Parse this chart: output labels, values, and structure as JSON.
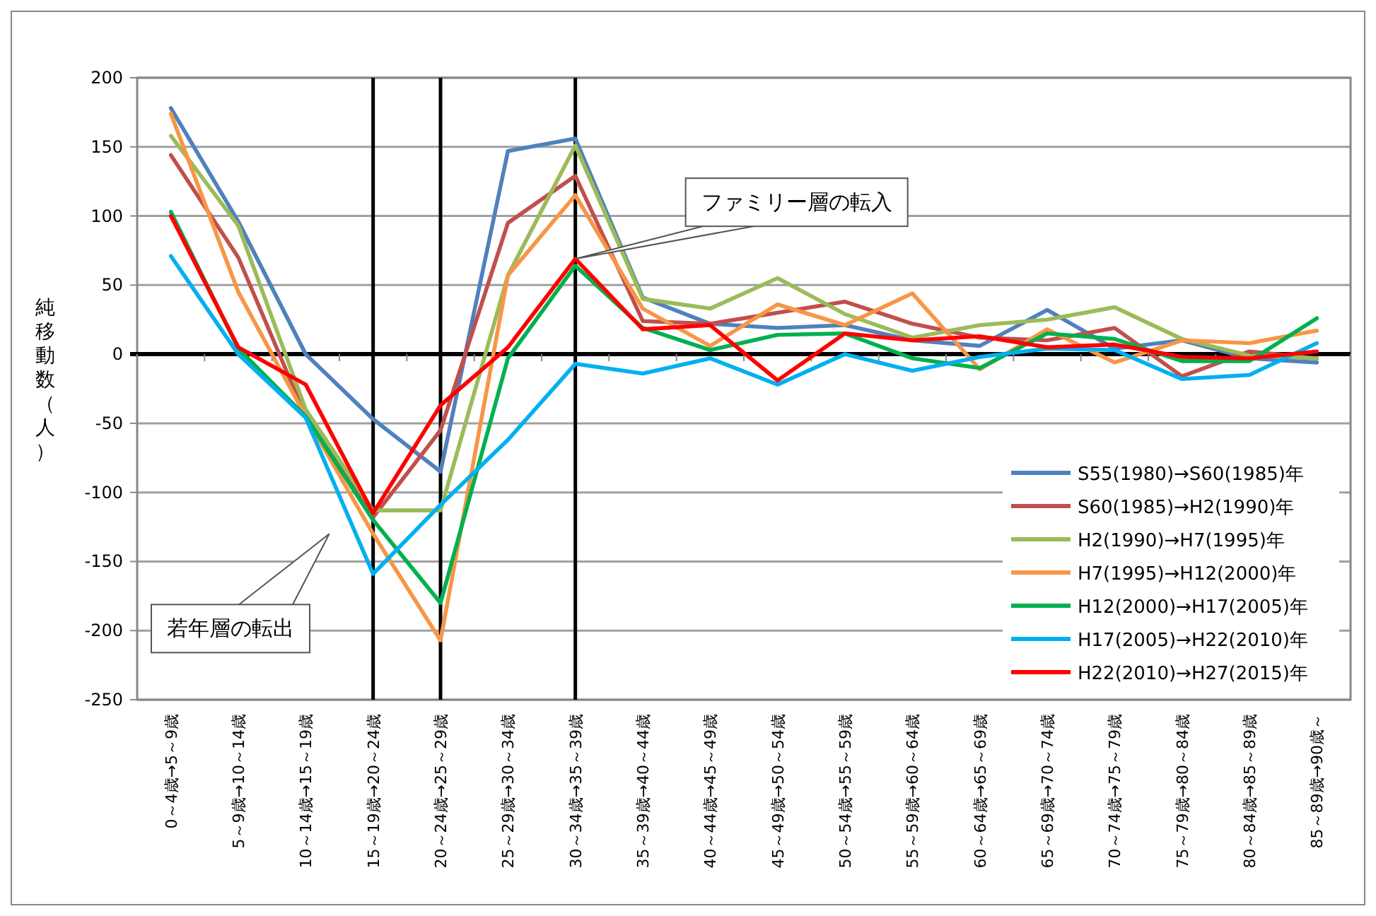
{
  "chart_data": {
    "type": "line",
    "ylabel": "純移動数（人）",
    "categories": [
      "0～4歳→5～9歳",
      "5～9歳→10～14歳",
      "10～14歳→15～19歳",
      "15～19歳→20～24歳",
      "20～24歳→25～29歳",
      "25～29歳→30～34歳",
      "30～34歳→35～39歳",
      "35～39歳→40～44歳",
      "40～44歳→45～49歳",
      "45～49歳→50～54歳",
      "50～54歳→55～59歳",
      "55～59歳→60～64歳",
      "60～64歳→65～69歳",
      "65～69歳→70～74歳",
      "70～74歳→75～79歳",
      "75～79歳→80～84歳",
      "80～84歳→85～89歳",
      "85～89歳→90歳～"
    ],
    "series": [
      {
        "name": "S55(1980)→S60(1985)年",
        "color": "#4f81bd",
        "values": [
          178,
          96,
          0,
          -47,
          -85,
          147,
          156,
          41,
          22,
          19,
          21,
          10,
          6,
          32,
          4,
          10,
          -3,
          -6
        ]
      },
      {
        "name": "S60(1985)→H2(1990)年",
        "color": "#c0504d",
        "values": [
          144,
          70,
          -45,
          -118,
          -55,
          95,
          129,
          24,
          22,
          30,
          38,
          22,
          12,
          10,
          19,
          -16,
          2,
          -3
        ]
      },
      {
        "name": "H2(1990)→H7(1995)年",
        "color": "#9bbb59",
        "values": [
          158,
          93,
          -40,
          -113,
          -113,
          57,
          151,
          40,
          33,
          55,
          29,
          12,
          21,
          25,
          34,
          11,
          -1,
          -3
        ]
      },
      {
        "name": "H7(1995)→H12(2000)年",
        "color": "#f79646",
        "values": [
          174,
          45,
          -45,
          -130,
          -207,
          57,
          115,
          33,
          6,
          36,
          21,
          44,
          -11,
          18,
          -6,
          10,
          8,
          17
        ]
      },
      {
        "name": "H12(2000)→H17(2005)年",
        "color": "#00b050",
        "values": [
          103,
          4,
          -45,
          -120,
          -180,
          -3,
          64,
          19,
          3,
          14,
          15,
          -3,
          -10,
          15,
          11,
          -5,
          -5,
          26
        ]
      },
      {
        "name": "H17(2005)→H22(2010)年",
        "color": "#00b0f0",
        "values": [
          71,
          0,
          -46,
          -159,
          -109,
          -62,
          -7,
          -14,
          -3,
          -22,
          0,
          -12,
          -2,
          4,
          3,
          -18,
          -15,
          8
        ]
      },
      {
        "name": "H22(2010)→H27(2015)年",
        "color": "#ff0000",
        "values": [
          100,
          5,
          -22,
          -115,
          -37,
          5,
          69,
          18,
          21,
          -19,
          15,
          10,
          13,
          5,
          7,
          -2,
          -3,
          2
        ]
      }
    ],
    "ylim": [
      -250,
      200
    ],
    "yticks": [
      -250,
      -200,
      -150,
      -100,
      -50,
      0,
      50,
      100,
      150,
      200
    ],
    "grid": "y",
    "legend": "bottom right",
    "marker": "none",
    "line_style": "solid",
    "ref_lines": [
      {
        "axis": "x",
        "value": "15～19歳→20～24歳",
        "color": "#000000"
      },
      {
        "axis": "x",
        "value": "20～24歳→25～29歳",
        "color": "#000000"
      },
      {
        "axis": "x",
        "value": "30～34歳→35～39歳",
        "color": "#000000"
      }
    ],
    "annotations": [
      {
        "text": "ファミリー層の転入",
        "x": "30～34歳→35～39歳",
        "y": 69
      },
      "若年層の転出"
    ]
  }
}
